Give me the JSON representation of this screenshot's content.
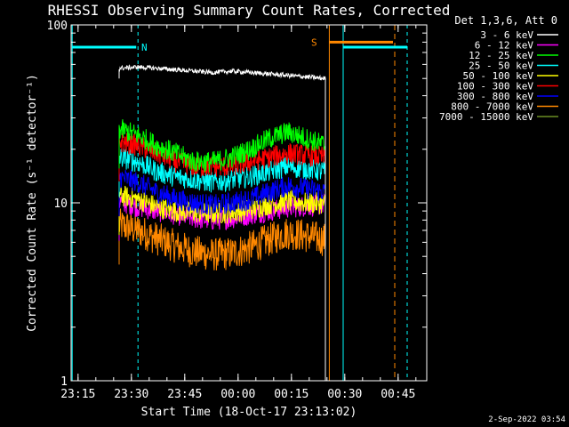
{
  "chart_data": {
    "type": "line",
    "title": "RHESSI Observing Summary Count Rates, Corrected",
    "xlabel": "Start Time (18-Oct-17 23:13:02)",
    "ylabel": "Corrected Count Rate (s⁻¹ detector⁻¹)",
    "yscale": "log",
    "ylim": [
      1,
      100
    ],
    "xlim_minutes_after_2313": [
      0,
      100
    ],
    "x_ticks": [
      "23:15",
      "23:30",
      "23:45",
      "00:00",
      "00:15",
      "00:30",
      "00:45"
    ],
    "y_ticks": [
      "1",
      "10",
      "100"
    ],
    "legend_header": "Det 1,3,6, Att 0",
    "legend_position": "right",
    "footer_date": "2-Sep-2022 03:54",
    "data_start_minutes": 13.5,
    "data_end_minutes": 71.5,
    "series": [
      {
        "name": "3 - 6 keV",
        "color": "#ffffff",
        "values": [
          57,
          58,
          57,
          56,
          55,
          54,
          55,
          54,
          53,
          52,
          51,
          50
        ]
      },
      {
        "name": "6 - 12 keV",
        "color": "#ff00ff",
        "values": [
          10.2,
          9.5,
          9.0,
          8.6,
          8.2,
          8.0,
          8.2,
          8.6,
          9.0,
          9.4,
          9.6,
          9.8
        ]
      },
      {
        "name": "12 - 25 keV",
        "color": "#00ff00",
        "values": [
          26,
          24,
          21,
          19,
          17,
          17,
          18,
          20,
          23,
          25,
          23,
          21
        ]
      },
      {
        "name": "25 - 50 keV",
        "color": "#00ffff",
        "values": [
          18,
          17,
          15,
          14,
          13.5,
          13,
          13.5,
          14,
          15,
          16,
          15.5,
          15
        ]
      },
      {
        "name": "50 - 100 keV",
        "color": "#ffff00",
        "values": [
          11,
          10.5,
          9.5,
          9.0,
          8.8,
          8.7,
          8.8,
          9.2,
          9.8,
          10.2,
          10.0,
          9.9
        ]
      },
      {
        "name": "100 - 300 keV",
        "color": "#ff0000",
        "values": [
          22,
          21,
          19,
          17,
          16,
          16,
          16,
          17,
          18,
          19,
          18.5,
          18
        ]
      },
      {
        "name": "300 - 800 keV",
        "color": "#0000ff",
        "values": [
          14,
          13,
          11.5,
          10.5,
          10,
          9.7,
          10,
          10.5,
          11.5,
          12.5,
          12,
          11.5
        ]
      },
      {
        "name": "800 - 7000 keV",
        "color": "#ff8800",
        "values": [
          7.5,
          7.0,
          6.3,
          5.7,
          5.3,
          5.1,
          5.2,
          5.6,
          6.2,
          6.8,
          6.5,
          6.2
        ]
      },
      {
        "name": "7000 - 15000 keV",
        "color": "#6b8e23",
        "values": []
      }
    ],
    "annotations": [
      {
        "label": "N",
        "color": "#00ffff",
        "x_minutes": 18.5,
        "y": 75
      },
      {
        "label": "S",
        "color": "#ff8800",
        "x_minutes": 70.5,
        "y": 80
      }
    ]
  }
}
